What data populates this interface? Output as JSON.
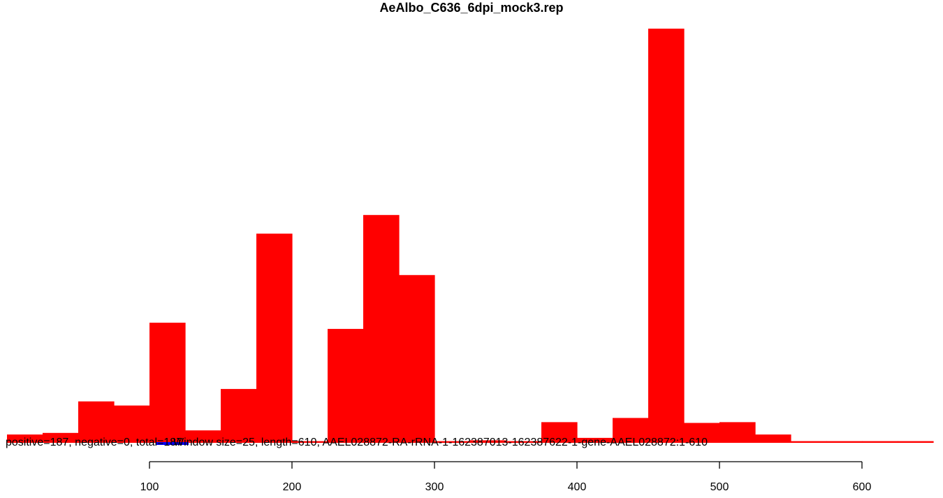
{
  "chart_data": {
    "type": "bar",
    "title": "AeAlbo_C636_6dpi_mock3.rep",
    "xlabel": "",
    "ylabel": "",
    "xlim": [
      0,
      650
    ],
    "ylim": [
      0,
      100
    ],
    "x_ticks": [
      100,
      200,
      300,
      400,
      500,
      600
    ],
    "bin_width": 25,
    "series": [
      {
        "color": "#ff0000",
        "bins": [
          {
            "x0": 0,
            "x1": 25,
            "value": 2.0
          },
          {
            "x0": 25,
            "x1": 50,
            "value": 2.4
          },
          {
            "x0": 50,
            "x1": 75,
            "value": 10.0
          },
          {
            "x0": 75,
            "x1": 100,
            "value": 9.0
          },
          {
            "x0": 100,
            "x1": 125,
            "value": 29.0
          },
          {
            "x0": 125,
            "x1": 150,
            "value": 3.0
          },
          {
            "x0": 150,
            "x1": 175,
            "value": 13.0
          },
          {
            "x0": 175,
            "x1": 200,
            "value": 50.5
          },
          {
            "x0": 200,
            "x1": 225,
            "value": 0.4
          },
          {
            "x0": 225,
            "x1": 250,
            "value": 27.5
          },
          {
            "x0": 250,
            "x1": 275,
            "value": 55.0
          },
          {
            "x0": 275,
            "x1": 300,
            "value": 40.5
          },
          {
            "x0": 300,
            "x1": 325,
            "value": 0.4
          },
          {
            "x0": 325,
            "x1": 350,
            "value": 0.6
          },
          {
            "x0": 350,
            "x1": 375,
            "value": 0.4
          },
          {
            "x0": 375,
            "x1": 400,
            "value": 5.0
          },
          {
            "x0": 400,
            "x1": 425,
            "value": 1.2
          },
          {
            "x0": 425,
            "x1": 450,
            "value": 6.0
          },
          {
            "x0": 450,
            "x1": 475,
            "value": 100
          },
          {
            "x0": 475,
            "x1": 500,
            "value": 4.8
          },
          {
            "x0": 500,
            "x1": 525,
            "value": 5.0
          },
          {
            "x0": 525,
            "x1": 550,
            "value": 2.0
          },
          {
            "x0": 550,
            "x1": 575,
            "value": 0.4
          },
          {
            "x0": 575,
            "x1": 600,
            "value": 0.4
          },
          {
            "x0": 600,
            "x1": 625,
            "value": 0.4
          },
          {
            "x0": 625,
            "x1": 650,
            "value": 0.4
          }
        ]
      }
    ],
    "negative_marker_color": "#0000ff",
    "annotations": [
      "positive=187, negative=0, total=187",
      "Window size=25, length=610, AAEL028872-RA-rRNA-1-162387013-162387622-1-gene-AAEL028872:1-610"
    ]
  }
}
